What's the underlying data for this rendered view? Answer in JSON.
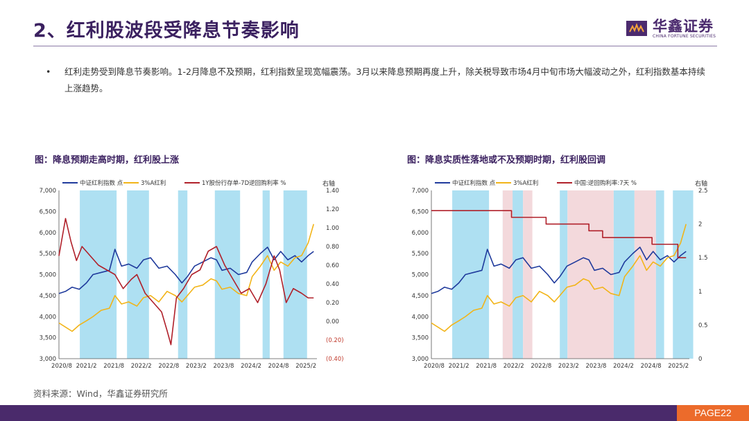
{
  "header": {
    "title": "2、红利股波段受降息节奏影响",
    "logo_cn": "华鑫证券",
    "logo_en": "CHINA FORTUNE SECURITIES",
    "logo_icon": "brand-mark-icon"
  },
  "bullet": {
    "marker": "•",
    "text": "红利走势受到降息节奏影响。1-2月降息不及预期，红利指数呈现宽幅震荡。3月以来降息预期再度上升，除关税导致市场4月中旬市场大幅波动之外，红利指数基本持续上涨趋势。"
  },
  "chart_data": [
    {
      "type": "line",
      "title": "图：降息预期走高时期，红利股上涨",
      "right_axis_label": "右轴",
      "categories": [
        "2020/8",
        "2021/2",
        "2021/8",
        "2022/2",
        "2022/8",
        "2023/2",
        "2023/8",
        "2024/2",
        "2024/8",
        "2025/2"
      ],
      "left_ylim": [
        3000,
        7000
      ],
      "left_ticks": [
        "3,000",
        "3,500",
        "4,000",
        "4,500",
        "5,000",
        "5,500",
        "6,000",
        "6,500",
        "7,000"
      ],
      "right_ylim": [
        -0.4,
        1.4
      ],
      "right_ticks": [
        "(0.40)",
        "(0.20)",
        "0.00",
        "0.20",
        "0.40",
        "0.60",
        "0.80",
        "1.00",
        "1.20",
        "1.40"
      ],
      "shaded_periods": [
        [
          2020.96,
          2021.63
        ],
        [
          2021.82,
          2022.22
        ],
        [
          2022.75,
          2022.92
        ],
        [
          2023.42,
          2023.88
        ],
        [
          2024.29,
          2024.42
        ],
        [
          2024.67,
          2025.1
        ]
      ],
      "series": [
        {
          "name": "中证红利指数 点",
          "color": "#1f3a9c",
          "axis": "left",
          "x": [
            2020.58,
            2020.7,
            2020.82,
            2020.95,
            2021.08,
            2021.2,
            2021.35,
            2021.5,
            2021.6,
            2021.72,
            2021.85,
            2022.0,
            2022.12,
            2022.25,
            2022.4,
            2022.55,
            2022.7,
            2022.82,
            2022.92,
            2023.05,
            2023.2,
            2023.35,
            2023.45,
            2023.55,
            2023.7,
            2023.85,
            2024.0,
            2024.1,
            2024.25,
            2024.38,
            2024.5,
            2024.62,
            2024.75,
            2024.88,
            2025.0,
            2025.12,
            2025.22
          ],
          "y": [
            4550,
            4600,
            4700,
            4650,
            4800,
            5000,
            5050,
            5100,
            5600,
            5200,
            5250,
            5150,
            5350,
            5400,
            5150,
            5200,
            5000,
            4800,
            4950,
            5200,
            5300,
            5400,
            5350,
            5100,
            5150,
            5000,
            5050,
            5300,
            5500,
            5650,
            5350,
            5550,
            5350,
            5450,
            5300,
            5450,
            5550
          ]
        },
        {
          "name": "3%A红利",
          "color": "#f2b418",
          "axis": "left",
          "x": [
            2020.58,
            2020.7,
            2020.82,
            2020.95,
            2021.08,
            2021.2,
            2021.35,
            2021.5,
            2021.6,
            2021.72,
            2021.85,
            2022.0,
            2022.12,
            2022.25,
            2022.4,
            2022.55,
            2022.7,
            2022.82,
            2022.92,
            2023.05,
            2023.2,
            2023.35,
            2023.45,
            2023.55,
            2023.7,
            2023.85,
            2024.0,
            2024.1,
            2024.25,
            2024.38,
            2024.5,
            2024.62,
            2024.75,
            2024.88,
            2025.0,
            2025.12,
            2025.22
          ],
          "y": [
            3850,
            3750,
            3650,
            3800,
            3900,
            4000,
            4150,
            4200,
            4500,
            4300,
            4350,
            4250,
            4450,
            4500,
            4350,
            4600,
            4500,
            4350,
            4500,
            4700,
            4750,
            4900,
            4850,
            4650,
            4700,
            4550,
            4500,
            4950,
            5200,
            5450,
            5100,
            5300,
            5200,
            5400,
            5450,
            5750,
            6200
          ]
        },
        {
          "name": "1Y股份行存单-7D逆回购利率 %",
          "color": "#b0202a",
          "axis": "right",
          "x": [
            2020.58,
            2020.7,
            2020.8,
            2020.9,
            2021.0,
            2021.15,
            2021.3,
            2021.45,
            2021.6,
            2021.75,
            2021.9,
            2022.0,
            2022.15,
            2022.3,
            2022.45,
            2022.55,
            2022.62,
            2022.72,
            2022.85,
            2023.0,
            2023.15,
            2023.3,
            2023.45,
            2023.6,
            2023.75,
            2023.9,
            2024.05,
            2024.2,
            2024.35,
            2024.5,
            2024.6,
            2024.72,
            2024.85,
            2025.0,
            2025.12,
            2025.22
          ],
          "y": [
            0.7,
            1.1,
            0.85,
            0.65,
            0.8,
            0.7,
            0.6,
            0.55,
            0.5,
            0.35,
            0.45,
            0.5,
            0.3,
            0.2,
            0.1,
            -0.1,
            -0.25,
            0.25,
            0.35,
            0.5,
            0.55,
            0.75,
            0.8,
            0.6,
            0.45,
            0.3,
            0.35,
            0.2,
            0.4,
            0.7,
            0.55,
            0.2,
            0.35,
            0.3,
            0.25,
            0.25
          ]
        }
      ]
    },
    {
      "type": "line",
      "title": "图：降息实质性落地或不及预期时期，红利股回调",
      "right_axis_label": "右轴",
      "categories": [
        "2020/8",
        "2021/2",
        "2021/8",
        "2022/2",
        "2022/8",
        "2023/2",
        "2023/8",
        "2024/2",
        "2024/8",
        "2025/2"
      ],
      "left_ylim": [
        3000,
        7000
      ],
      "left_ticks": [
        "3,000",
        "3,500",
        "4,000",
        "4,500",
        "5,000",
        "5,500",
        "6,000",
        "6,500",
        "7,000"
      ],
      "right_ylim": [
        0,
        2.5
      ],
      "right_ticks": [
        "0",
        "0.5",
        "1",
        "1.5",
        "2",
        "2.5"
      ],
      "shaded_periods": [
        [
          2020.96,
          2021.63
        ],
        [
          2021.88,
          2022.25
        ],
        [
          2022.92,
          2023.06
        ],
        [
          2023.9,
          2024.28
        ],
        [
          2024.67,
          2024.82
        ],
        [
          2024.98,
          2025.35
        ]
      ],
      "pink_periods": [
        [
          2021.88,
          2022.06
        ],
        [
          2022.25,
          2022.42
        ],
        [
          2023.06,
          2023.9
        ],
        [
          2024.28,
          2024.67
        ]
      ],
      "series": [
        {
          "name": "中证红利指数 点",
          "color": "#1f3a9c",
          "axis": "left",
          "x": [
            2020.58,
            2020.7,
            2020.82,
            2020.95,
            2021.08,
            2021.2,
            2021.35,
            2021.5,
            2021.6,
            2021.72,
            2021.85,
            2022.0,
            2022.12,
            2022.25,
            2022.4,
            2022.55,
            2022.7,
            2022.82,
            2022.92,
            2023.05,
            2023.2,
            2023.35,
            2023.45,
            2023.55,
            2023.7,
            2023.85,
            2024.0,
            2024.1,
            2024.25,
            2024.38,
            2024.5,
            2024.62,
            2024.75,
            2024.88,
            2025.0,
            2025.12,
            2025.22
          ],
          "y": [
            4550,
            4600,
            4700,
            4650,
            4800,
            5000,
            5050,
            5100,
            5600,
            5200,
            5250,
            5150,
            5350,
            5400,
            5150,
            5200,
            5000,
            4800,
            4950,
            5200,
            5300,
            5400,
            5350,
            5100,
            5150,
            5000,
            5050,
            5300,
            5500,
            5650,
            5350,
            5550,
            5350,
            5450,
            5300,
            5450,
            5550
          ]
        },
        {
          "name": "3%A红利",
          "color": "#f2b418",
          "axis": "left",
          "x": [
            2020.58,
            2020.7,
            2020.82,
            2020.95,
            2021.08,
            2021.2,
            2021.35,
            2021.5,
            2021.6,
            2021.72,
            2021.85,
            2022.0,
            2022.12,
            2022.25,
            2022.4,
            2022.55,
            2022.7,
            2022.82,
            2022.92,
            2023.05,
            2023.2,
            2023.35,
            2023.45,
            2023.55,
            2023.7,
            2023.85,
            2024.0,
            2024.1,
            2024.25,
            2024.38,
            2024.5,
            2024.62,
            2024.75,
            2024.88,
            2025.0,
            2025.12,
            2025.22
          ],
          "y": [
            3850,
            3750,
            3650,
            3800,
            3900,
            4000,
            4150,
            4200,
            4500,
            4300,
            4350,
            4250,
            4450,
            4500,
            4350,
            4600,
            4500,
            4350,
            4500,
            4700,
            4750,
            4900,
            4850,
            4650,
            4700,
            4550,
            4500,
            4950,
            5200,
            5450,
            5100,
            5300,
            5200,
            5400,
            5450,
            5750,
            6200
          ]
        },
        {
          "name": "中国:逆回购利率:7天 %",
          "color": "#b0202a",
          "axis": "right",
          "step": true,
          "x": [
            2020.58,
            2022.04,
            2022.67,
            2023.45,
            2023.7,
            2024.6,
            2025.07,
            2025.22
          ],
          "y": [
            2.2,
            2.1,
            2.0,
            1.9,
            1.8,
            1.7,
            1.5,
            1.5
          ]
        }
      ]
    }
  ],
  "source": "资料来源：Wind，华鑫证券研究所",
  "footer": {
    "page": "PAGE22"
  }
}
